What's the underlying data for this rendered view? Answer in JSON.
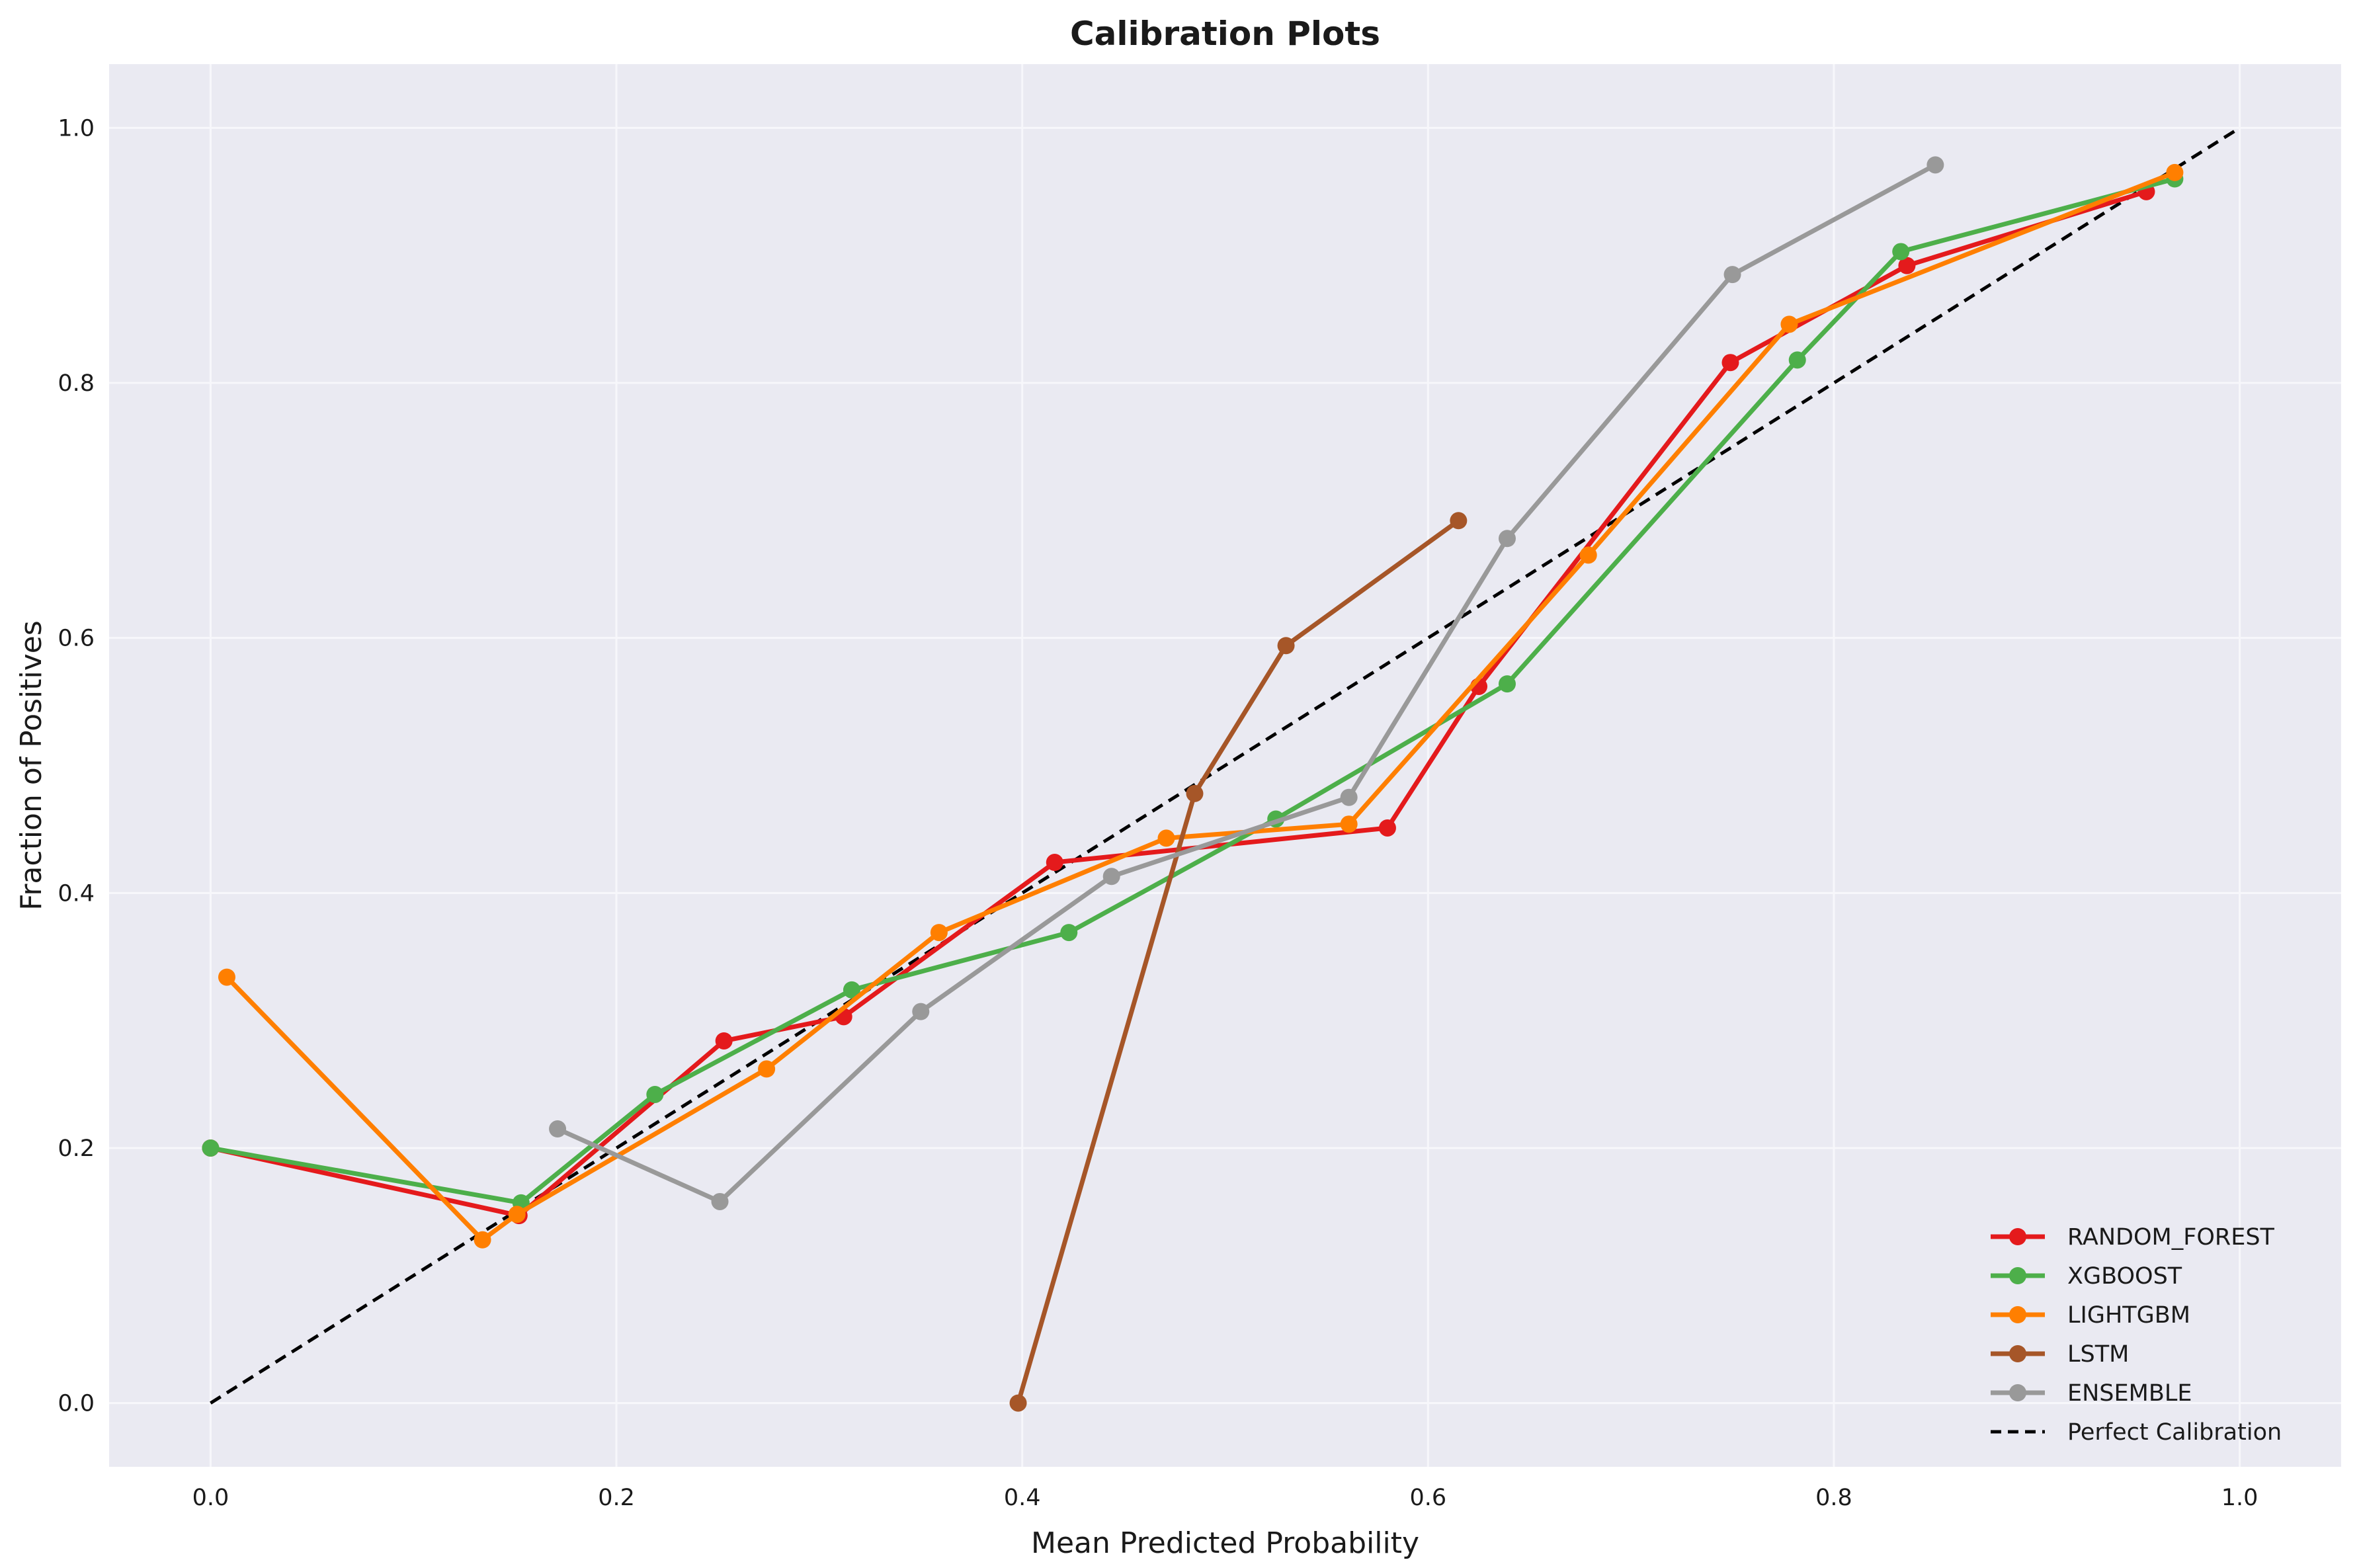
{
  "chart_data": {
    "type": "line",
    "title": "Calibration Plots",
    "xlabel": "Mean Predicted Probability",
    "ylabel": "Fraction of Positives",
    "xlim": [
      -0.05,
      1.05
    ],
    "ylim": [
      -0.05,
      1.05
    ],
    "xticks": [
      0.0,
      0.2,
      0.4,
      0.6,
      0.8,
      1.0
    ],
    "yticks": [
      0.0,
      0.2,
      0.4,
      0.6,
      0.8,
      1.0
    ],
    "xtick_labels": [
      "0.0",
      "0.2",
      "0.4",
      "0.6",
      "0.8",
      "1.0"
    ],
    "ytick_labels": [
      "0.0",
      "0.2",
      "0.4",
      "0.6",
      "0.8",
      "1.0"
    ],
    "grid": true,
    "legend_position": "bottom-right",
    "background_color": "#eaeaf2",
    "series": [
      {
        "name": "RANDOM_FOREST",
        "color": "#e41a1c",
        "x": [
          0.0,
          0.152,
          0.253,
          0.312,
          0.416,
          0.58,
          0.625,
          0.749,
          0.836,
          0.954
        ],
        "y": [
          0.2,
          0.147,
          0.284,
          0.303,
          0.424,
          0.451,
          0.562,
          0.816,
          0.892,
          0.95
        ]
      },
      {
        "name": "XGBOOST",
        "color": "#4daf4a",
        "x": [
          0.0,
          0.153,
          0.219,
          0.316,
          0.423,
          0.525,
          0.639,
          0.782,
          0.833,
          0.968
        ],
        "y": [
          0.2,
          0.157,
          0.242,
          0.324,
          0.369,
          0.458,
          0.564,
          0.818,
          0.903,
          0.96
        ]
      },
      {
        "name": "LIGHTGBM",
        "color": "#ff7f00",
        "x": [
          0.008,
          0.134,
          0.151,
          0.274,
          0.359,
          0.471,
          0.561,
          0.679,
          0.778,
          0.968
        ],
        "y": [
          0.334,
          0.128,
          0.148,
          0.262,
          0.369,
          0.443,
          0.454,
          0.665,
          0.846,
          0.965
        ]
      },
      {
        "name": "LSTM",
        "color": "#a65628",
        "x": [
          0.398,
          0.485,
          0.53,
          0.615
        ],
        "y": [
          0.0,
          0.478,
          0.594,
          0.692
        ]
      },
      {
        "name": "ENSEMBLE",
        "color": "#999999",
        "x": [
          0.171,
          0.251,
          0.35,
          0.444,
          0.561,
          0.639,
          0.75,
          0.85
        ],
        "y": [
          0.215,
          0.158,
          0.307,
          0.413,
          0.475,
          0.678,
          0.885,
          0.971
        ]
      }
    ],
    "reference_line": {
      "name": "Perfect Calibration",
      "color": "#000000",
      "style": "dashed",
      "x": [
        0,
        1
      ],
      "y": [
        0,
        1
      ]
    }
  }
}
